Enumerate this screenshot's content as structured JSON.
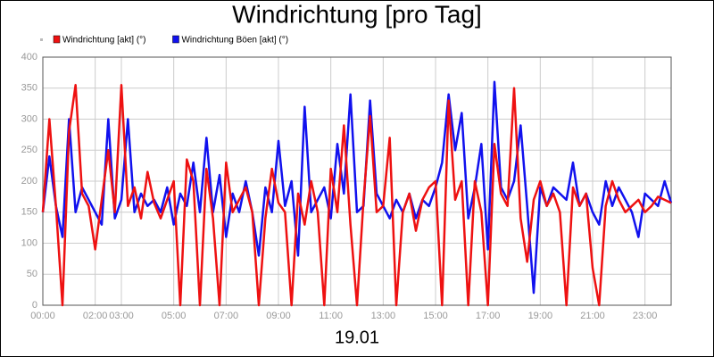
{
  "chart_data": {
    "type": "line",
    "title": "Windrichtung [pro Tag]",
    "xlabel": "19.01",
    "x": [
      0,
      0.25,
      0.5,
      0.75,
      1,
      1.25,
      1.5,
      1.75,
      2,
      2.25,
      2.5,
      2.75,
      3,
      3.25,
      3.5,
      3.75,
      4,
      4.25,
      4.5,
      4.75,
      5,
      5.25,
      5.5,
      5.75,
      6,
      6.25,
      6.5,
      6.75,
      7,
      7.25,
      7.5,
      7.75,
      8,
      8.25,
      8.5,
      8.75,
      9,
      9.25,
      9.5,
      9.75,
      10,
      10.25,
      10.5,
      10.75,
      11,
      11.25,
      11.5,
      11.75,
      12,
      12.25,
      12.5,
      12.75,
      13,
      13.25,
      13.5,
      13.75,
      14,
      14.25,
      14.5,
      14.75,
      15,
      15.25,
      15.5,
      15.75,
      16,
      16.25,
      16.5,
      16.75,
      17,
      17.25,
      17.5,
      17.75,
      18,
      18.25,
      18.5,
      18.75,
      19,
      19.25,
      19.5,
      19.75,
      20,
      20.25,
      20.5,
      20.75,
      21,
      21.25,
      21.5,
      21.75,
      22,
      22.25,
      22.5,
      22.75,
      23,
      23.25,
      23.5,
      23.75,
      24
    ],
    "series": [
      {
        "name": "Windrichtung [akt] (°)",
        "color": "#ee1111",
        "values": [
          150,
          300,
          160,
          0,
          280,
          355,
          180,
          160,
          90,
          170,
          250,
          150,
          355,
          160,
          190,
          140,
          215,
          165,
          140,
          170,
          200,
          0,
          235,
          200,
          0,
          220,
          140,
          0,
          230,
          150,
          170,
          190,
          150,
          0,
          140,
          220,
          165,
          150,
          0,
          180,
          130,
          200,
          150,
          0,
          220,
          150,
          290,
          130,
          0,
          170,
          305,
          150,
          160,
          270,
          0,
          150,
          180,
          120,
          170,
          190,
          200,
          0,
          330,
          170,
          200,
          0,
          200,
          150,
          0,
          260,
          180,
          160,
          350,
          140,
          70,
          170,
          200,
          160,
          180,
          150,
          0,
          190,
          160,
          180,
          60,
          0,
          160,
          200,
          170,
          150,
          160,
          170,
          150,
          160,
          175,
          170,
          165
        ]
      },
      {
        "name": "Windrichtung Böen [akt] (°)",
        "color": "#1111ee",
        "values": [
          150,
          240,
          160,
          110,
          300,
          150,
          190,
          170,
          150,
          130,
          300,
          140,
          170,
          300,
          150,
          180,
          160,
          170,
          150,
          190,
          130,
          180,
          160,
          230,
          150,
          270,
          150,
          210,
          110,
          180,
          150,
          200,
          150,
          80,
          190,
          150,
          265,
          160,
          200,
          80,
          320,
          150,
          170,
          190,
          140,
          260,
          180,
          340,
          150,
          160,
          330,
          180,
          160,
          140,
          170,
          150,
          180,
          140,
          170,
          160,
          190,
          230,
          340,
          250,
          310,
          140,
          190,
          260,
          90,
          360,
          190,
          170,
          200,
          290,
          160,
          20,
          190,
          160,
          190,
          180,
          170,
          230,
          160,
          180,
          150,
          130,
          200,
          160,
          190,
          170,
          150,
          110,
          180,
          170,
          160,
          200,
          165
        ]
      }
    ],
    "xlim": [
      0,
      24
    ],
    "ylim": [
      0,
      400
    ],
    "xticks": [
      {
        "value": 0,
        "label": "00:00"
      },
      {
        "value": 2,
        "label": "02:00"
      },
      {
        "value": 3,
        "label": "03:00"
      },
      {
        "value": 5,
        "label": "05:00"
      },
      {
        "value": 7,
        "label": "07:00"
      },
      {
        "value": 9,
        "label": "09:00"
      },
      {
        "value": 11,
        "label": "11:00"
      },
      {
        "value": 13,
        "label": "13:00"
      },
      {
        "value": 15,
        "label": "15:00"
      },
      {
        "value": 17,
        "label": "17:00"
      },
      {
        "value": 19,
        "label": "19:00"
      },
      {
        "value": 21,
        "label": "21:00"
      },
      {
        "value": 23,
        "label": "23:00"
      }
    ],
    "yticks": [
      0,
      50,
      100,
      150,
      200,
      250,
      300,
      350,
      400
    ],
    "grid": true
  }
}
